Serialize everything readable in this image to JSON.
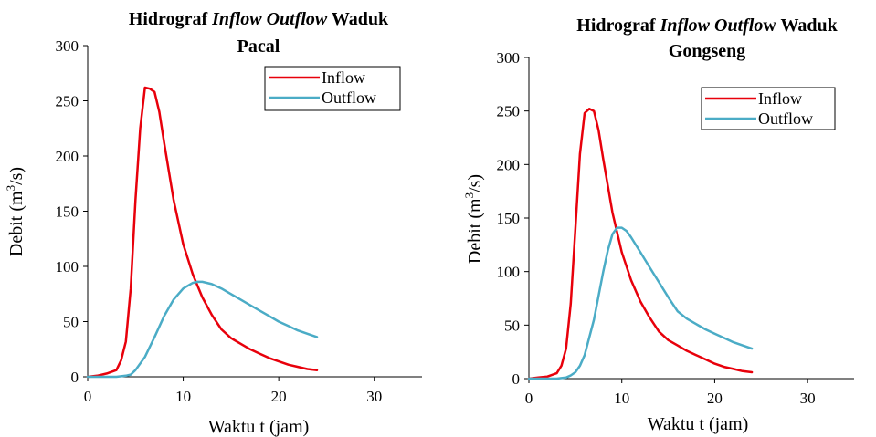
{
  "chart_data": [
    {
      "type": "line",
      "title_parts": [
        {
          "text": "Hidrograf ",
          "italic": false
        },
        {
          "text": "Inflow Outflow",
          "italic": true
        },
        {
          "text": " Waduk",
          "italic": false
        }
      ],
      "title_line2": "Pacal",
      "xlabel": "Waktu t (jam)",
      "ylabel_main": "Debit (m",
      "ylabel_sup": "3",
      "ylabel_tail": "/s)",
      "xlim": [
        0,
        35
      ],
      "ylim": [
        0,
        300
      ],
      "xticks": [
        0,
        10,
        20,
        30
      ],
      "yticks": [
        0,
        50,
        100,
        150,
        200,
        250,
        300
      ],
      "grid": false,
      "legend_position": "top-right",
      "series": [
        {
          "name": "Inflow",
          "color": "#e8000b",
          "x": [
            0,
            1,
            2,
            3,
            3.5,
            4,
            4.5,
            5,
            5.5,
            6,
            6.5,
            7,
            7.5,
            8,
            9,
            10,
            11,
            12,
            13,
            14,
            15,
            16,
            17,
            18,
            19,
            20,
            21,
            22,
            23,
            24
          ],
          "y": [
            0,
            1,
            3,
            6,
            15,
            32,
            80,
            160,
            225,
            262,
            261,
            258,
            240,
            212,
            160,
            120,
            93,
            72,
            56,
            43,
            35,
            30,
            25,
            21,
            17,
            14,
            11,
            9,
            7,
            6
          ]
        },
        {
          "name": "Outflow",
          "color": "#4bacc6",
          "x": [
            0,
            2,
            3,
            4,
            4.5,
            5,
            6,
            7,
            8,
            9,
            10,
            11,
            11.5,
            12,
            13,
            14,
            15,
            16,
            17,
            18,
            19,
            20,
            21,
            22,
            23,
            24
          ],
          "y": [
            0,
            0,
            0,
            1,
            2,
            6,
            18,
            36,
            55,
            70,
            80,
            85,
            86,
            86,
            84,
            80,
            75,
            70,
            65,
            60,
            55,
            50,
            46,
            42,
            39,
            36
          ]
        }
      ]
    },
    {
      "type": "line",
      "title_parts": [
        {
          "text": "Hidrograf ",
          "italic": false
        },
        {
          "text": "Inflow Outflo",
          "italic": true
        },
        {
          "text": "w Waduk",
          "italic": false
        }
      ],
      "title_line2": "Gongseng",
      "xlabel": "Waktu t (jam)",
      "ylabel_main": "Debit (m",
      "ylabel_sup": "3",
      "ylabel_tail": "/s)",
      "xlim": [
        0,
        35
      ],
      "ylim": [
        0,
        300
      ],
      "xticks": [
        0,
        10,
        20,
        30
      ],
      "yticks": [
        0,
        50,
        100,
        150,
        200,
        250,
        300
      ],
      "grid": false,
      "legend_position": "top-right",
      "series": [
        {
          "name": "Inflow",
          "color": "#e8000b",
          "x": [
            0,
            1,
            2,
            3,
            3.5,
            4,
            4.5,
            5,
            5.5,
            6,
            6.5,
            7,
            7.5,
            8,
            9,
            10,
            11,
            12,
            13,
            14,
            15,
            16,
            17,
            18,
            19,
            20,
            21,
            22,
            23,
            24
          ],
          "y": [
            0,
            1,
            2,
            5,
            12,
            28,
            70,
            140,
            210,
            248,
            252,
            250,
            232,
            205,
            155,
            118,
            92,
            72,
            57,
            44,
            36,
            31,
            26,
            22,
            18,
            14,
            11,
            9,
            7,
            6
          ]
        },
        {
          "name": "Outflow",
          "color": "#4bacc6",
          "x": [
            0,
            3,
            4,
            4.5,
            5,
            5.5,
            6,
            7,
            8,
            8.5,
            9,
            9.5,
            10,
            10.5,
            11,
            12,
            13,
            14,
            15,
            16,
            17,
            18,
            19,
            20,
            21,
            22,
            23,
            24
          ],
          "y": [
            0,
            0,
            1,
            3,
            6,
            12,
            22,
            55,
            100,
            120,
            135,
            141,
            141,
            138,
            132,
            118,
            104,
            90,
            76,
            63,
            56,
            51,
            46,
            42,
            38,
            34,
            31,
            28
          ]
        }
      ]
    }
  ]
}
